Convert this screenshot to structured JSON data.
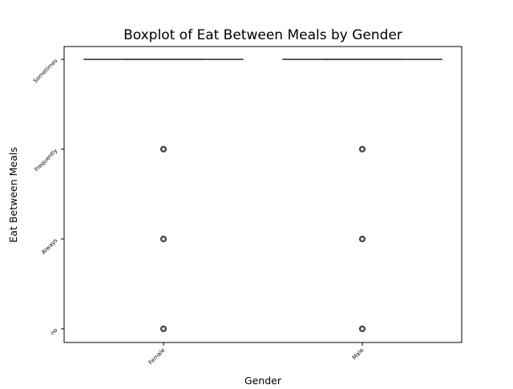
{
  "chart_data": {
    "type": "boxplot",
    "title": "Boxplot of Eat Between Meals by Gender",
    "xlabel": "Gender",
    "ylabel": "Eat Between Meals",
    "categories": [
      "Female",
      "Male"
    ],
    "y_categories": [
      "no",
      "Always",
      "Frequently",
      "Sometimes"
    ],
    "boxes": [
      {
        "category": "Female",
        "whisker_low": "Sometimes",
        "q1": "Sometimes",
        "median": "Sometimes",
        "q3": "Sometimes",
        "whisker_high": "Sometimes",
        "outliers": [
          "Frequently",
          "Always",
          "no"
        ]
      },
      {
        "category": "Male",
        "whisker_low": "Sometimes",
        "q1": "Sometimes",
        "median": "Sometimes",
        "q3": "Sometimes",
        "whisker_high": "Sometimes",
        "outliers": [
          "Frequently",
          "Always",
          "no"
        ]
      }
    ],
    "grid": false,
    "legend": "none",
    "colors": {
      "frame": "#000000",
      "box_line": "#3f3f3f",
      "outlier": "#3f3f3f",
      "background": "#ffffff"
    }
  }
}
